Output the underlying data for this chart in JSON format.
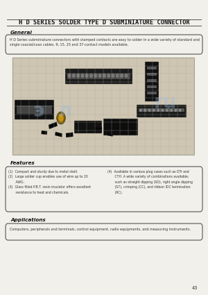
{
  "bg_color": "#f2f0eb",
  "title": "H D SERIES SOLDER TYPE D SUBMINIATURE CONNECTOR",
  "title_fontsize": 6.2,
  "title_color": "#111111",
  "general_heading": "General",
  "general_box_text": "H D Series subminiature connectors with stamped contacts are easy to solder in a wide variety of standard and\nsingle coaxial/coax cables. 9, 15, 25 and 37-contact models available.",
  "features_heading": "Features",
  "features_left": "(1)  Compact and sturdy due to metal shell.\n(2)  Large solder cup enables use of wire up to 20\n       AWG.\n(3)  Glass filled P.B.T. resin insulator offers excellent\n       resistance to heat and chemicals.",
  "features_right": "(4)  Available in various plug cases such as DTr and\n       CTH. A wide variety of combinations available,\n       such as straight dipping (SD), right angle dipping\n       (S7), crimping (CC), and ribbon IDC termination\n       (RC).",
  "applications_heading": "Applications",
  "applications_box_text": "Computers, peripherals and terminals, control equipment, radio equipments, and measuring instruments.",
  "page_number": "43",
  "line_color": "#555555",
  "box_edge_color": "#555555",
  "text_color": "#333333",
  "heading_color": "#111111"
}
